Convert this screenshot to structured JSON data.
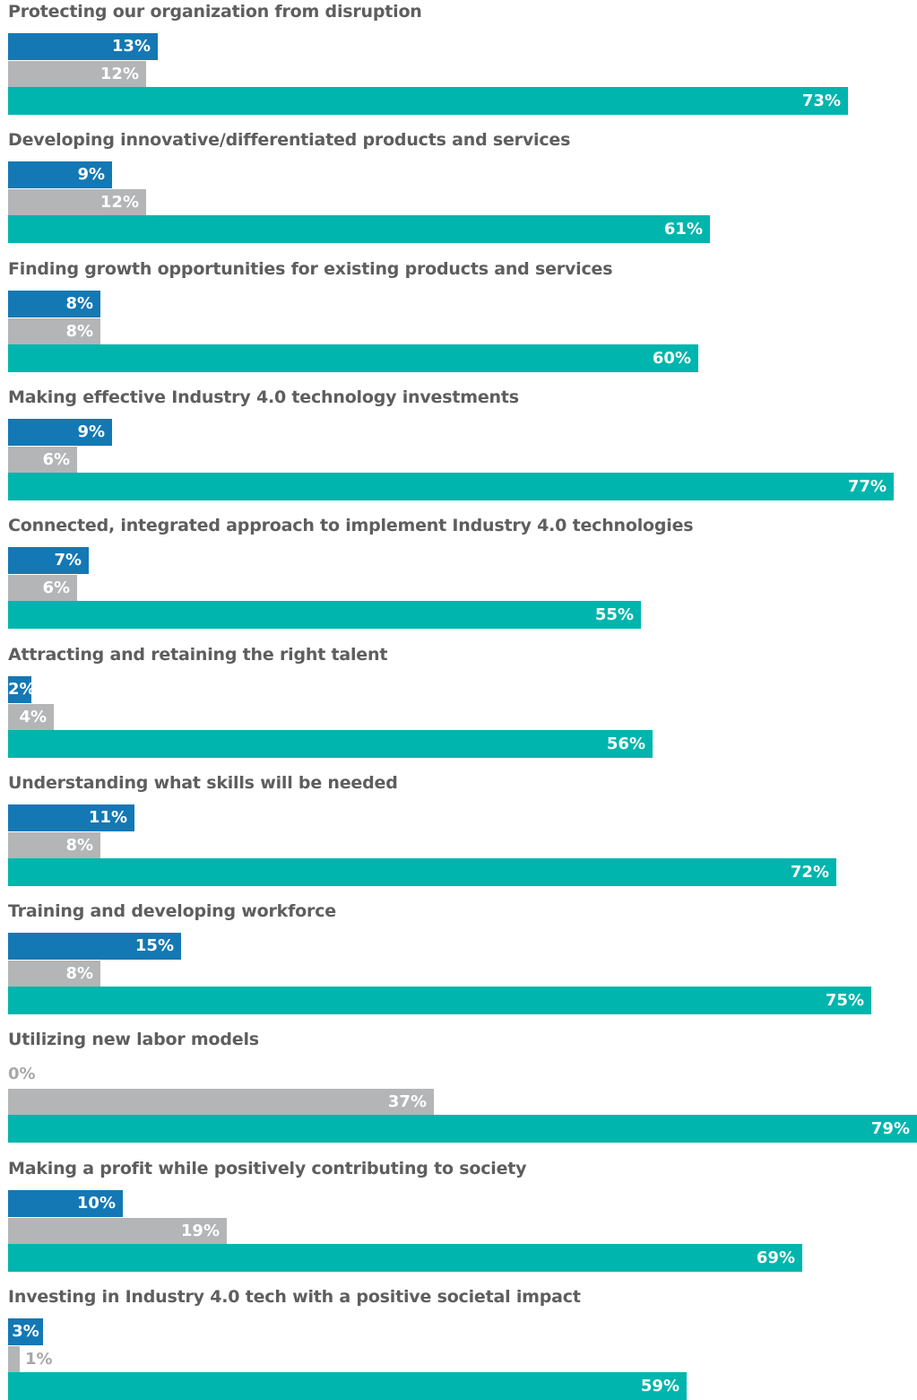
{
  "chart_data": {
    "type": "bar",
    "orientation": "horizontal",
    "grid": false,
    "legend": "none",
    "colors": [
      "#1478b4",
      "#b3b5b6",
      "#00b5ad"
    ],
    "series_colors": [
      "#1478b4",
      "#b3b5b6",
      "#00b5ad"
    ],
    "categories": [
      "Protecting our organization from disruption",
      "Developing innovative/differentiated products and services",
      "Finding growth opportunities for existing products and services",
      "Making effective Industry 4.0 technology investments",
      "Connected, integrated approach to implement Industry 4.0 technologies",
      "Attracting and retaining the right talent",
      "Understanding what skills will be needed",
      "Training and developing workforce",
      "Utilizing new labor models",
      "Making a profit while positively contributing to society",
      "Investing in Industry 4.0 tech with a positive societal impact"
    ],
    "series": [
      {
        "values": [
          13,
          9,
          8,
          9,
          7,
          2,
          11,
          15,
          0,
          10,
          3
        ]
      },
      {
        "values": [
          12,
          12,
          8,
          6,
          6,
          4,
          8,
          8,
          37,
          19,
          1
        ]
      },
      {
        "values": [
          73,
          61,
          60,
          77,
          55,
          56,
          72,
          75,
          79,
          69,
          59
        ]
      }
    ],
    "value_suffix": "%",
    "xlim": [
      0,
      79
    ]
  }
}
